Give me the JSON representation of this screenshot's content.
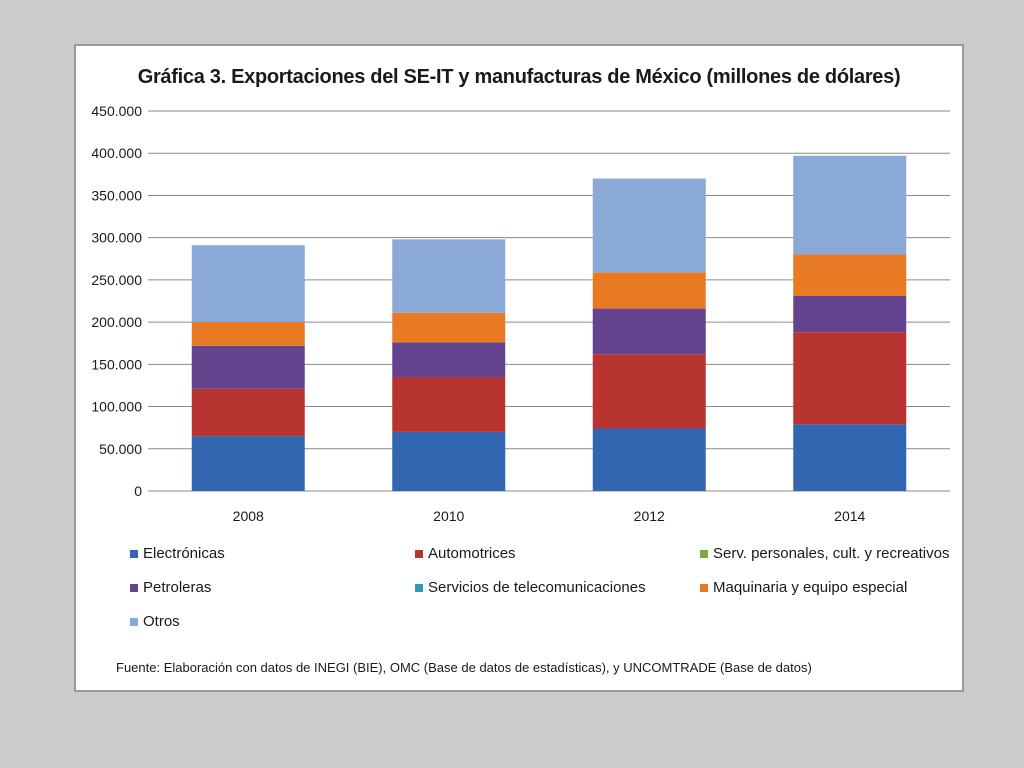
{
  "chart_data": {
    "type": "bar",
    "stacked": true,
    "title": "Gráfica 3. Exportaciones del SE-IT y manufacturas de México (millones de dólares)",
    "categories": [
      "2008",
      "2010",
      "2012",
      "2014"
    ],
    "ylim": [
      0,
      450000
    ],
    "yticks": [
      {
        "value": 0,
        "label": "0"
      },
      {
        "value": 50000,
        "label": "50.000"
      },
      {
        "value": 100000,
        "label": "100.000"
      },
      {
        "value": 150000,
        "label": "150.000"
      },
      {
        "value": 200000,
        "label": "200.000"
      },
      {
        "value": 250000,
        "label": "250.000"
      },
      {
        "value": 300000,
        "label": "300.000"
      },
      {
        "value": 350000,
        "label": "350.000"
      },
      {
        "value": 400000,
        "label": "400.000"
      },
      {
        "value": 450000,
        "label": "450.000"
      }
    ],
    "grid": true,
    "legend_position": "bottom",
    "series": [
      {
        "name": "Electrónicas",
        "color": "#3366b0",
        "values": [
          65000,
          70000,
          74000,
          79000
        ]
      },
      {
        "name": "Automotrices",
        "color": "#b83431",
        "values": [
          56000,
          65000,
          88000,
          109000
        ]
      },
      {
        "name": "Serv. personales, cult. y recreativos",
        "color": "#7faa3d",
        "values": [
          0,
          0,
          0,
          0
        ]
      },
      {
        "name": "Petroleras",
        "color": "#64438f",
        "values": [
          51000,
          41000,
          54000,
          43000
        ]
      },
      {
        "name": "Servicios de telecomunicaciones",
        "color": "#2e9bb3",
        "values": [
          0,
          0,
          0,
          0
        ]
      },
      {
        "name": "Maquinaria y equipo especial",
        "color": "#e77a22",
        "values": [
          28000,
          35000,
          43000,
          49000
        ]
      },
      {
        "name": "Otros",
        "color": "#8aa9d6",
        "values": [
          91000,
          87000,
          111000,
          117000
        ]
      }
    ]
  },
  "source_text": "Fuente: Elaboración con datos de INEGI (BIE), OMC (Base de datos de estadísticas), y UNCOMTRADE (Base de datos)"
}
